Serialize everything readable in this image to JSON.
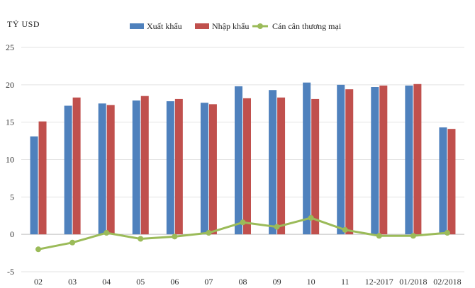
{
  "chart_data": {
    "type": "bar",
    "ylabel": "TỶ USD",
    "categories": [
      "02",
      "03",
      "04",
      "05",
      "06",
      "07",
      "08",
      "09",
      "10",
      "11",
      "12-2017",
      "01/2018",
      "02/2018"
    ],
    "series": [
      {
        "name": "Xuất khẩu",
        "type": "bar",
        "color": "#4f81bd",
        "values": [
          13.1,
          17.2,
          17.5,
          17.9,
          17.8,
          17.6,
          19.8,
          19.3,
          20.3,
          20.0,
          19.7,
          19.9,
          14.3
        ]
      },
      {
        "name": "Nhập khẩu",
        "type": "bar",
        "color": "#c0504d",
        "values": [
          15.1,
          18.3,
          17.3,
          18.5,
          18.1,
          17.4,
          18.2,
          18.3,
          18.1,
          19.4,
          19.9,
          20.1,
          14.1
        ]
      },
      {
        "name": "Cán cân thương mại",
        "type": "line",
        "color": "#9bbb59",
        "values": [
          -2.0,
          -1.1,
          0.2,
          -0.6,
          -0.3,
          0.2,
          1.6,
          1.0,
          2.2,
          0.6,
          -0.2,
          -0.2,
          0.2
        ]
      }
    ],
    "ylim": [
      -5,
      25
    ],
    "yticks": [
      25,
      20,
      15,
      10,
      5,
      0,
      -5
    ],
    "grid": true,
    "legend_position": "top"
  }
}
